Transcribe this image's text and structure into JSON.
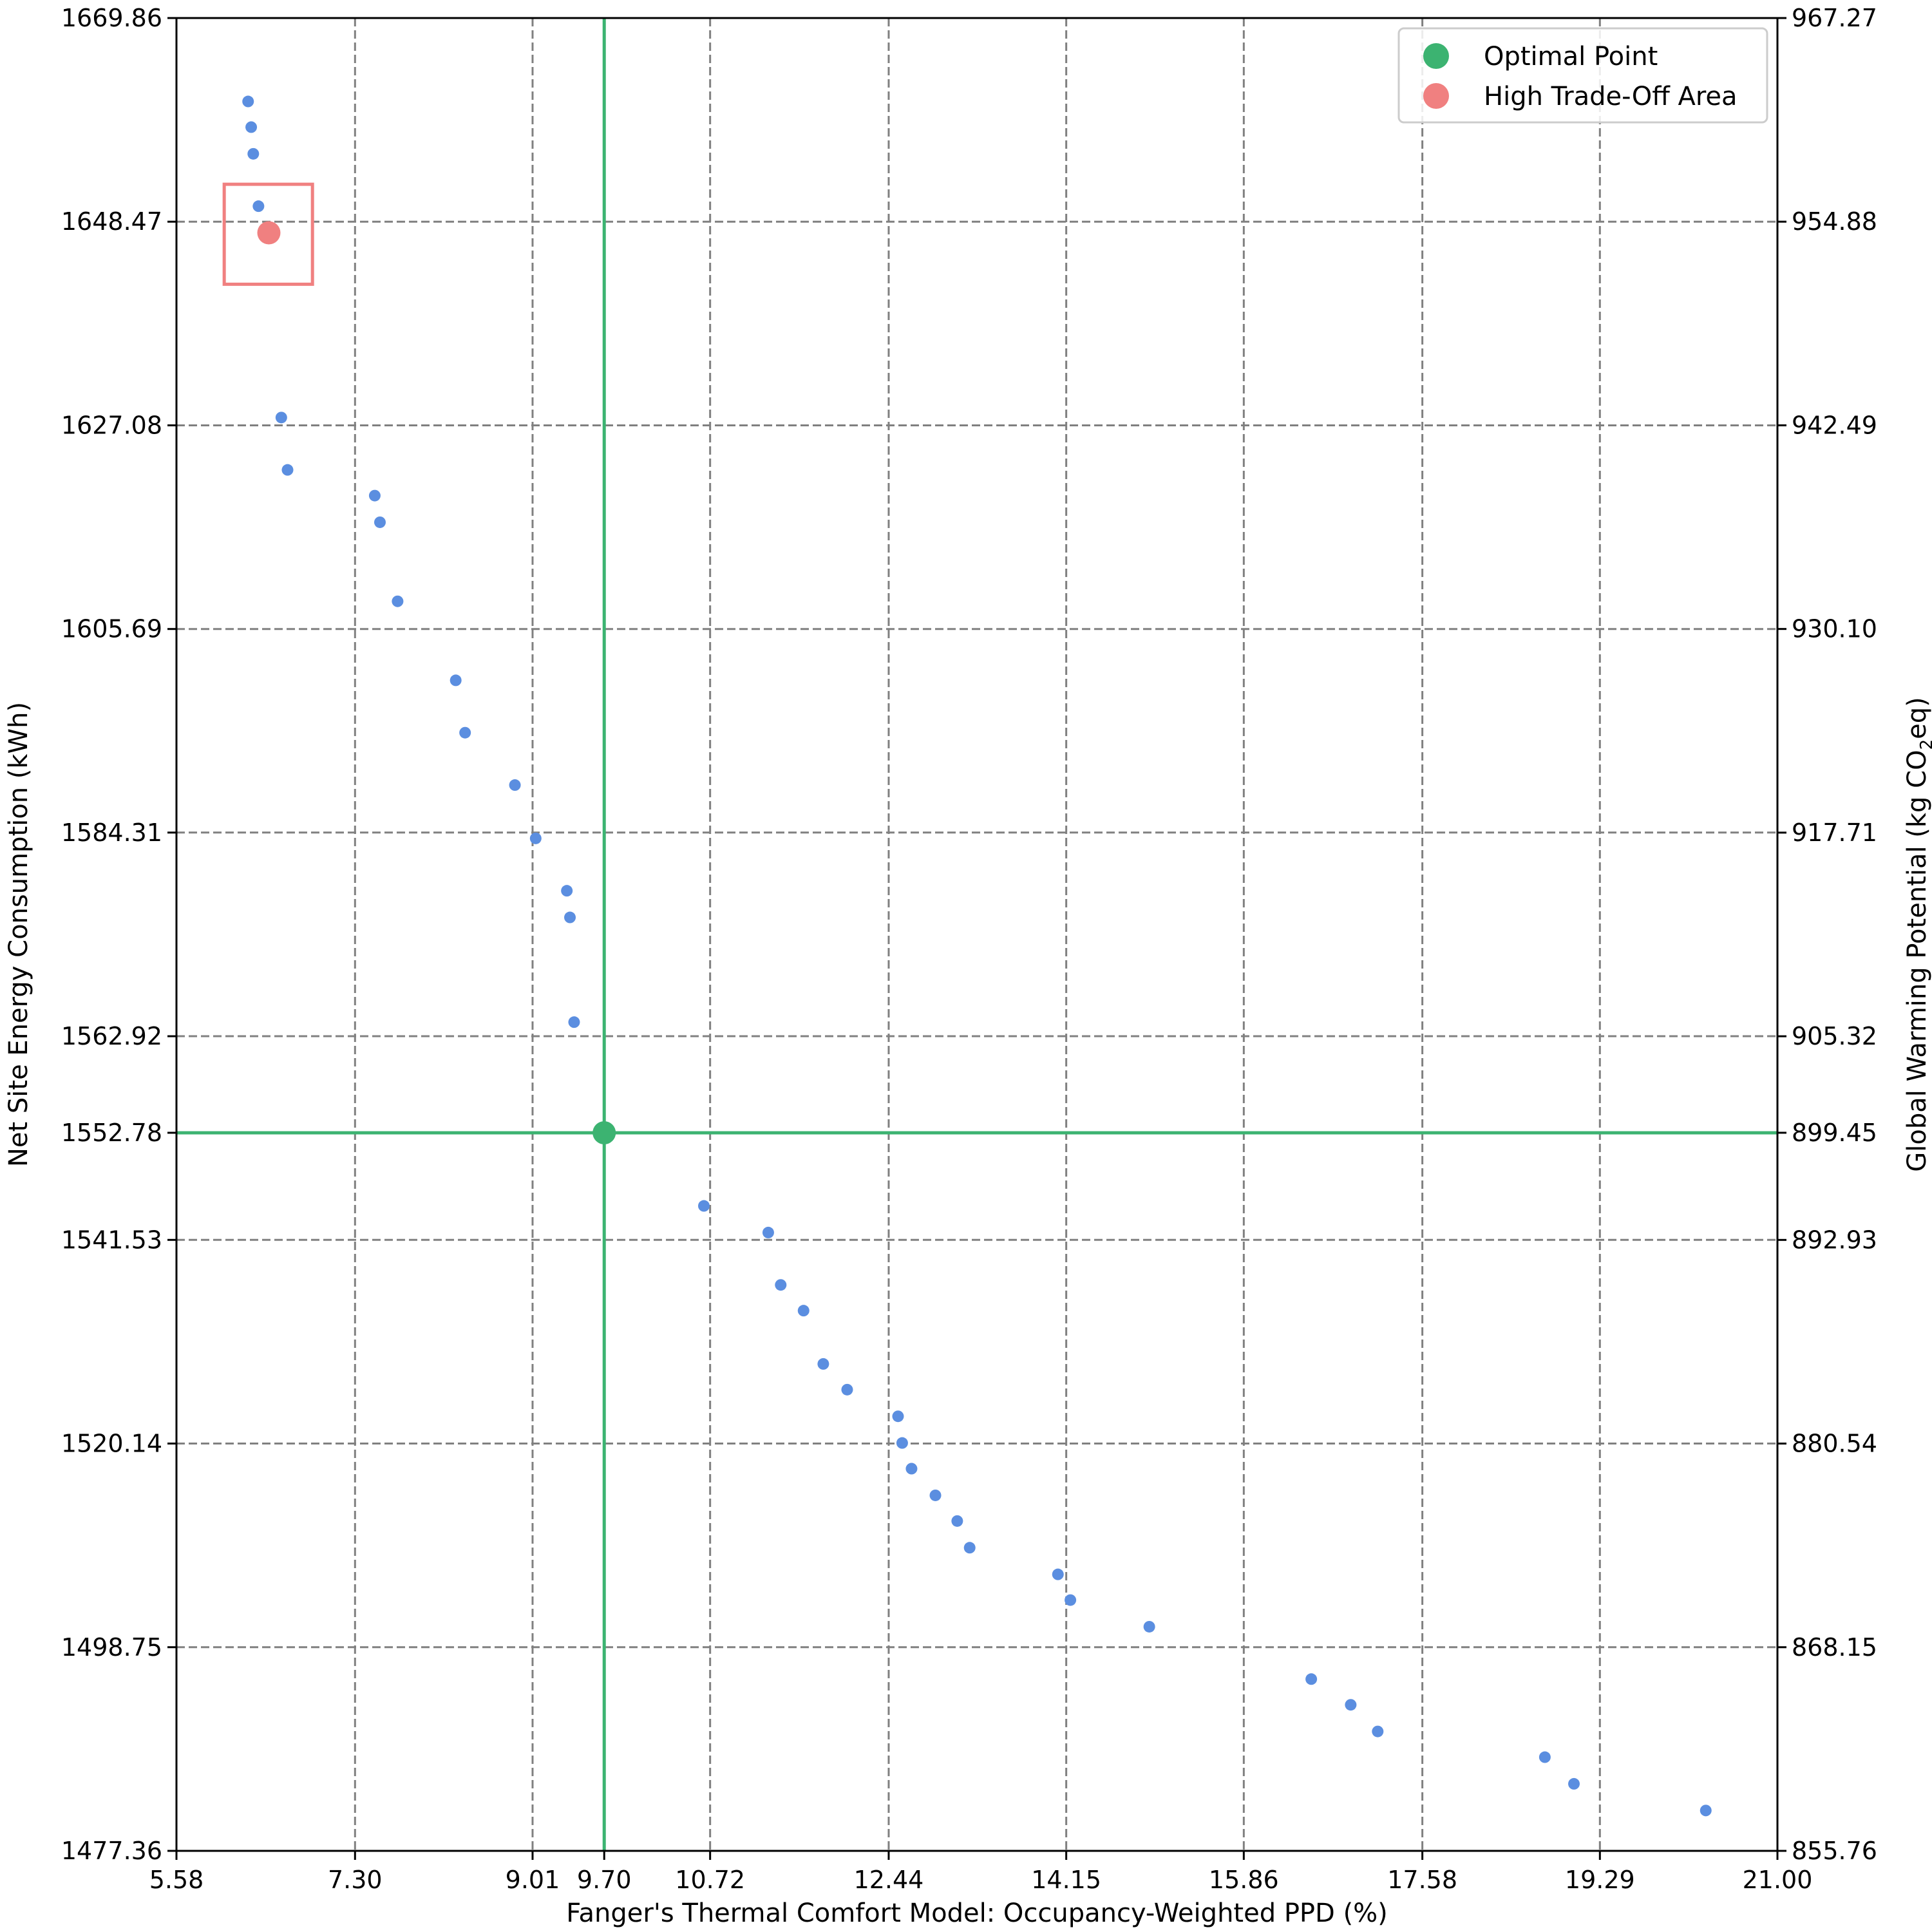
{
  "chart_data": {
    "type": "scatter",
    "xlabel": "Fanger's Thermal Comfort Model: Occupancy-Weighted PPD (%)",
    "ylabel_left": "Net Site Energy Consumption (kWh)",
    "ylabel_right": {
      "prefix": "Global Warming Potential (kg CO",
      "sub": "2",
      "suffix": "eq)"
    },
    "xlim": [
      5.58,
      21.0
    ],
    "ylim_left": [
      1477.36,
      1669.86
    ],
    "ylim_right": [
      855.76,
      967.27
    ],
    "x_ticks": [
      "5.58",
      "7.30",
      "9.01",
      "9.70",
      "10.72",
      "12.44",
      "14.15",
      "15.86",
      "17.58",
      "19.29",
      "21.00"
    ],
    "y_left_ticks": [
      "1477.36",
      "1498.75",
      "1520.14",
      "1541.53",
      "1552.78",
      "1562.92",
      "1584.31",
      "1605.69",
      "1627.08",
      "1648.47",
      "1669.86"
    ],
    "y_right_ticks": [
      "855.76",
      "868.15",
      "880.54",
      "892.93",
      "899.45",
      "905.32",
      "917.71",
      "930.10",
      "942.49",
      "954.88",
      "967.27"
    ],
    "grid": true,
    "colors": {
      "points": "#5b8ee0",
      "optimal": "#3cb371",
      "tradeoff": "#f08080"
    },
    "series": [
      {
        "name": "",
        "points": [
          [
            6.27,
            1661.1
          ],
          [
            6.3,
            1658.4
          ],
          [
            6.32,
            1655.6
          ],
          [
            6.37,
            1650.1
          ],
          [
            6.59,
            1627.9
          ],
          [
            6.65,
            1622.4
          ],
          [
            7.49,
            1619.7
          ],
          [
            7.54,
            1616.9
          ],
          [
            7.71,
            1608.6
          ],
          [
            8.27,
            1600.3
          ],
          [
            8.36,
            1594.8
          ],
          [
            8.84,
            1589.3
          ],
          [
            9.04,
            1583.7
          ],
          [
            9.34,
            1578.2
          ],
          [
            9.37,
            1575.4
          ],
          [
            9.41,
            1564.4
          ],
          [
            10.66,
            1545.1
          ],
          [
            11.28,
            1542.3
          ],
          [
            11.4,
            1536.8
          ],
          [
            11.62,
            1534.1
          ],
          [
            11.81,
            1528.5
          ],
          [
            12.04,
            1525.8
          ],
          [
            12.53,
            1523.0
          ],
          [
            12.57,
            1520.2
          ],
          [
            12.66,
            1517.5
          ],
          [
            12.89,
            1514.7
          ],
          [
            13.1,
            1512.0
          ],
          [
            13.22,
            1509.2
          ],
          [
            14.07,
            1506.4
          ],
          [
            14.19,
            1503.7
          ],
          [
            14.95,
            1500.9
          ],
          [
            16.51,
            1495.4
          ],
          [
            16.89,
            1492.7
          ],
          [
            17.15,
            1489.9
          ],
          [
            18.76,
            1487.2
          ],
          [
            19.04,
            1484.4
          ],
          [
            20.31,
            1481.6
          ]
        ]
      },
      {
        "name": "Optimal Point",
        "x": 9.7,
        "y": 1552.78
      },
      {
        "name": "High Trade-Off Area",
        "x": 6.47,
        "y": 1647.3,
        "box": {
          "x": [
            6.04,
            6.89
          ],
          "y": [
            1641.9,
            1652.4
          ]
        }
      }
    ],
    "legend": {
      "placement": "top-right",
      "entries": [
        "Optimal Point",
        "High Trade-Off Area"
      ]
    }
  }
}
